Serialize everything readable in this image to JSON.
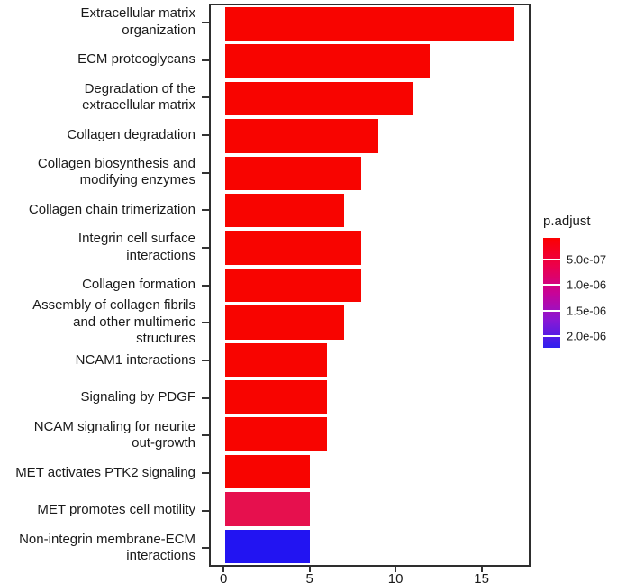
{
  "chart_data": {
    "type": "bar",
    "orientation": "horizontal",
    "title": "",
    "xlabel": "",
    "ylabel": "",
    "grid": false,
    "xlim": [
      -0.85,
      17.85
    ],
    "x_ticks": [
      0,
      5,
      10,
      15
    ],
    "categories": [
      "Extracellular matrix\norganization",
      "ECM proteoglycans",
      "Degradation of the\nextracellular matrix",
      "Collagen degradation",
      "Collagen biosynthesis and\nmodifying enzymes",
      "Collagen chain trimerization",
      "Integrin cell surface\ninteractions",
      "Collagen formation",
      "Assembly of collagen fibrils\nand other multimeric\nstructures",
      "NCAM1 interactions",
      "Signaling by PDGF",
      "NCAM signaling for neurite\nout-growth",
      "MET activates PTK2 signaling",
      "MET promotes cell motility",
      "Non-integrin membrane-ECM\ninteractions"
    ],
    "values": [
      17,
      12,
      11,
      9,
      8,
      7,
      8,
      8,
      7,
      6,
      6,
      6,
      5,
      5,
      5
    ],
    "bar_colors": [
      "#F80400",
      "#F80400",
      "#F80400",
      "#F80400",
      "#F80400",
      "#F80400",
      "#F80400",
      "#F80400",
      "#F80400",
      "#F80400",
      "#F80400",
      "#F80400",
      "#F80400",
      "#E6104E",
      "#2214F2"
    ],
    "legend": {
      "title": "p.adjust",
      "position": "right",
      "gradient": [
        "#FC0000",
        "#EC004B",
        "#C80397",
        "#8818D5",
        "#3020EF"
      ],
      "ticks": [
        {
          "label": "5.0e-07",
          "pos": 0.2
        },
        {
          "label": "1.0e-06",
          "pos": 0.43
        },
        {
          "label": "1.5e-06",
          "pos": 0.66
        },
        {
          "label": "2.0e-06",
          "pos": 0.89
        }
      ]
    }
  }
}
